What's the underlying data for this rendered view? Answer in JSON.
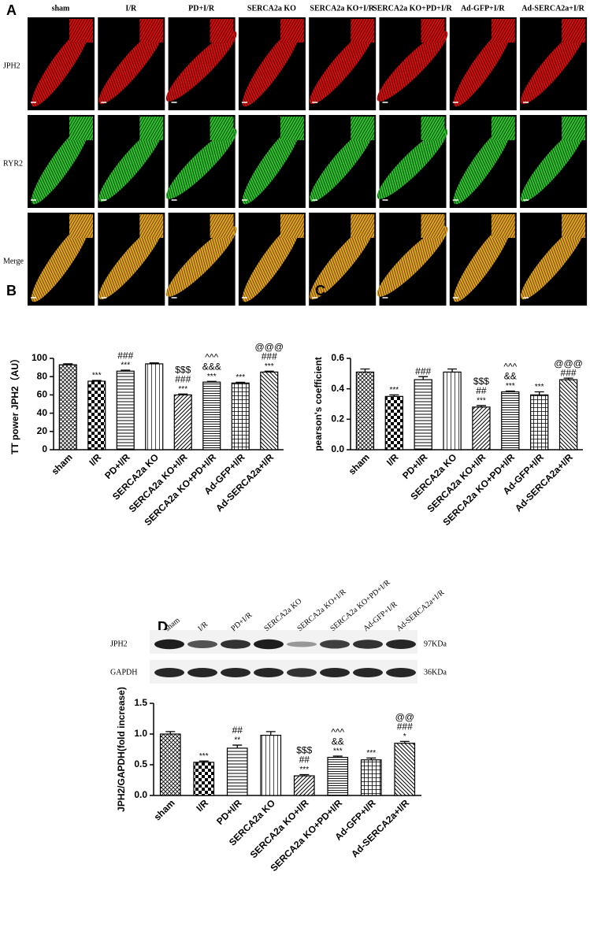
{
  "panel_a": {
    "label": "A",
    "columns": [
      "sham",
      "I/R",
      "PD+I/R",
      "SERCA2a KO",
      "SERCA2a KO+I/R",
      "SERCA2a KO+PD+I/R",
      "Ad-GFP+I/R",
      "Ad-SERCA2a+I/R"
    ],
    "rows": [
      "JPH2",
      "RYR2",
      "Merge"
    ]
  },
  "blot": {
    "label": "D",
    "lanes": [
      "sham",
      "I/R",
      "PD+I/R",
      "SERCA2a KO",
      "SERCA2a KO+I/R",
      "SERCA2a KO+PD+I/R",
      "Ad-GFP+I/R",
      "Ad-SERCA2a+I/R"
    ],
    "rows": [
      "JPH2",
      "GAPDH"
    ],
    "sizes": [
      "97KDa",
      "36KDa"
    ]
  },
  "chart_data": [
    {
      "type": "bar",
      "panel": "B",
      "ylabel": "TT power JPH2（AU）",
      "categories": [
        "sham",
        "I/R",
        "PD+I/R",
        "SERCA2a KO",
        "SERCA2a KO+I/R",
        "SERCA2a KO+PD+I/R",
        "Ad-GFP+I/R",
        "Ad-SERCA2a+I/R"
      ],
      "values": [
        93,
        75,
        86,
        94,
        60,
        74,
        73,
        85
      ],
      "errors": [
        1,
        0.8,
        1,
        1,
        1,
        0.8,
        0.8,
        1
      ],
      "annotations": [
        [],
        [
          "***"
        ],
        [
          "###",
          "***"
        ],
        [],
        [
          "$$$",
          "###",
          "***"
        ],
        [
          "^^^",
          "&&&",
          "***"
        ],
        [
          "***"
        ],
        [
          "@@@",
          "###",
          "***"
        ]
      ],
      "color": "#000000",
      "ylim": [
        0,
        100
      ],
      "yticks": [
        0,
        20,
        40,
        60,
        80,
        100
      ]
    },
    {
      "type": "bar",
      "panel": "C",
      "ylabel": "pearson's coefficient",
      "categories": [
        "sham",
        "I/R",
        "PD+I/R",
        "SERCA2a KO",
        "SERCA2a KO+I/R",
        "SERCA2a KO+PD+I/R",
        "Ad-GFP+I/R",
        "Ad-SERCA2a+I/R"
      ],
      "values": [
        0.51,
        0.35,
        0.46,
        0.51,
        0.28,
        0.38,
        0.36,
        0.46
      ],
      "errors": [
        0.02,
        0.01,
        0.02,
        0.02,
        0.01,
        0.005,
        0.02,
        0.01
      ],
      "annotations": [
        [],
        [
          "***"
        ],
        [
          "###"
        ],
        [],
        [
          "$$$",
          "##",
          "***"
        ],
        [
          "^^^",
          "&&",
          "***"
        ],
        [
          "***"
        ],
        [
          "@@@",
          "###"
        ]
      ],
      "color": "#000000",
      "ylim": [
        0,
        0.6
      ],
      "yticks": [
        {
          "value": 0,
          "label": "0.0"
        },
        0.2,
        0.4,
        0.6
      ]
    },
    {
      "type": "bar",
      "panel": "D",
      "ylabel": "JPH2/GAPDH(fold increase)",
      "categories": [
        "sham",
        "I/R",
        "PD+I/R",
        "SERCA2a KO",
        "SERCA2a KO+I/R",
        "SERCA2a KO+PD+I/R",
        "Ad-GFP+I/R",
        "Ad-SERCA2a+I/R"
      ],
      "values": [
        1.0,
        0.54,
        0.77,
        0.98,
        0.32,
        0.62,
        0.58,
        0.85
      ],
      "errors": [
        0.04,
        0.02,
        0.05,
        0.06,
        0.02,
        0.02,
        0.03,
        0.03
      ],
      "annotations": [
        [],
        [
          "***"
        ],
        [
          "##",
          "**"
        ],
        [],
        [
          "$$$",
          "##",
          "***"
        ],
        [
          "^^^",
          "&&",
          "***"
        ],
        [
          "***"
        ],
        [
          "@@",
          "###",
          "*"
        ]
      ],
      "color": "#000000",
      "ylim": [
        0,
        1.5
      ],
      "yticks": [
        {
          "value": 0,
          "label": "0.0"
        },
        0.5,
        {
          "value": 1,
          "label": "1.0"
        },
        1.5
      ]
    }
  ]
}
